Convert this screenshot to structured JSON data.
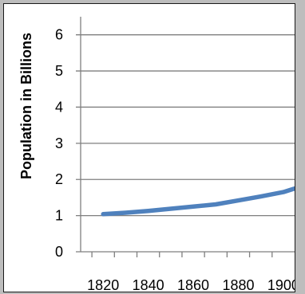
{
  "chart_data": {
    "type": "line",
    "title": "",
    "xlabel": "",
    "ylabel": "Population in Billions",
    "x_ticks": [
      "1820",
      "1840",
      "1860",
      "1880",
      "1900"
    ],
    "y_ticks": [
      "0",
      "1",
      "2",
      "3",
      "4",
      "5",
      "6"
    ],
    "xlim": [
      1810,
      1905
    ],
    "ylim": [
      0,
      6.5
    ],
    "grid": "horizontal",
    "legend": "none",
    "series": [
      {
        "color": "#4f81bd",
        "x": [
          1820,
          1830,
          1840,
          1850,
          1860,
          1870,
          1880,
          1890,
          1900,
          1905
        ],
        "y": [
          1.04,
          1.08,
          1.13,
          1.19,
          1.25,
          1.31,
          1.42,
          1.53,
          1.65,
          1.75
        ]
      }
    ]
  }
}
